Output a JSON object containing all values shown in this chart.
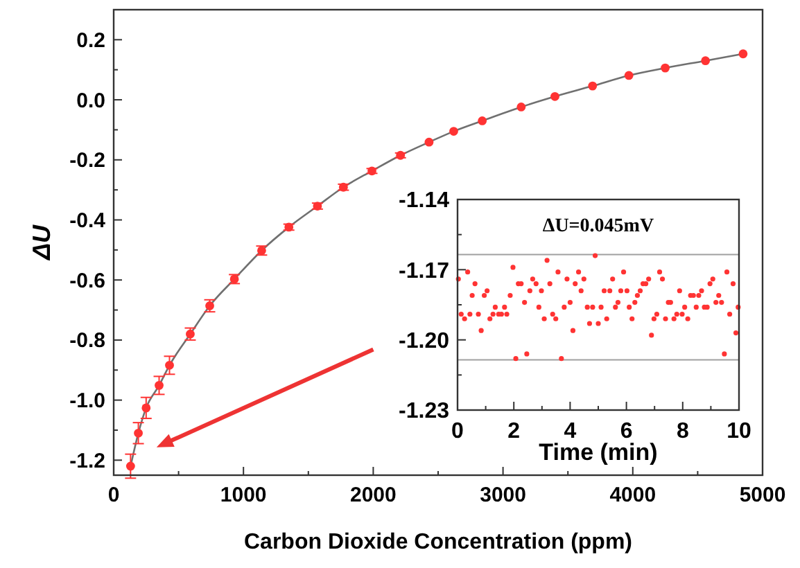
{
  "chart_data": [
    {
      "type": "scatter",
      "xlabel": "Carbon Dioxide Concentration (ppm)",
      "ylabel": "ΔU",
      "xlim": [
        0,
        5000
      ],
      "ylim": [
        -1.25,
        0.3
      ],
      "xticks": [
        0,
        {
          "value": 500,
          "label": null
        },
        1000,
        {
          "value": 1500,
          "label": null
        },
        2000,
        {
          "value": 2500,
          "label": null
        },
        3000,
        {
          "value": 3500,
          "label": null
        },
        4000,
        {
          "value": 4500,
          "label": null
        },
        5000
      ],
      "yticks": [
        {
          "value": -1.2,
          "label": "-1.2"
        },
        {
          "value": -1.1,
          "label": null
        },
        {
          "value": -1.0,
          "label": "-1.0"
        },
        {
          "value": -0.9,
          "label": null
        },
        {
          "value": -0.8,
          "label": "-0.8"
        },
        {
          "value": -0.7,
          "label": null
        },
        {
          "value": -0.6,
          "label": "-0.6"
        },
        {
          "value": -0.5,
          "label": null
        },
        {
          "value": -0.4,
          "label": "-0.4"
        },
        {
          "value": -0.3,
          "label": null
        },
        {
          "value": -0.2,
          "label": "-0.2"
        },
        {
          "value": -0.1,
          "label": null
        },
        {
          "value": 0,
          "label": "0.0"
        },
        {
          "value": 0.1,
          "label": null
        },
        {
          "value": 0.2,
          "label": "0.2"
        }
      ],
      "marker": "circle",
      "series": [
        {
          "type": "line",
          "marker": "none",
          "color": "#707070",
          "x": [
            130,
            190,
            250,
            350,
            430,
            590,
            740,
            930,
            1140,
            1350,
            1570,
            1770,
            1990,
            2210,
            2430,
            2620,
            2840,
            3140,
            3400,
            3690,
            3970,
            4250,
            4560,
            4850
          ],
          "values": [
            -1.22,
            -1.11,
            -1.026,
            -0.951,
            -0.884,
            -0.78,
            -0.686,
            -0.597,
            -0.502,
            -0.424,
            -0.354,
            -0.291,
            -0.237,
            -0.185,
            -0.141,
            -0.105,
            -0.07,
            -0.024,
            0.011,
            0.046,
            0.081,
            0.106,
            0.13,
            0.153
          ]
        },
        {
          "color": "#ff3333",
          "x": [
            130,
            190,
            250,
            350,
            430,
            590,
            740,
            930,
            1140,
            1350,
            1570,
            1770,
            1990,
            2210,
            2430,
            2620,
            2840,
            3140,
            3400,
            3690,
            3970,
            4250,
            4560,
            4850
          ],
          "values": [
            -1.22,
            -1.11,
            -1.026,
            -0.951,
            -0.884,
            -0.78,
            -0.686,
            -0.597,
            -0.502,
            -0.424,
            -0.354,
            -0.291,
            -0.237,
            -0.185,
            -0.141,
            -0.105,
            -0.07,
            -0.024,
            0.011,
            0.046,
            0.081,
            0.106,
            0.13,
            0.153
          ],
          "errors": [
            0.04,
            0.035,
            0.035,
            0.03,
            0.03,
            0.02,
            0.02,
            0.015,
            0.015,
            0.01,
            0.01,
            0.01,
            0.008,
            0.008,
            null,
            null,
            null,
            null,
            null,
            null,
            null,
            null,
            null,
            null
          ]
        }
      ]
    },
    {
      "type": "scatter",
      "xlabel": "Time (min)",
      "xlim": [
        0,
        10
      ],
      "ylim": [
        -1.23,
        -1.14
      ],
      "xticks": [
        0,
        {
          "value": 1,
          "label": null
        },
        2,
        {
          "value": 3,
          "label": null
        },
        4,
        {
          "value": 5,
          "label": null
        },
        6,
        {
          "value": 7,
          "label": null
        },
        8,
        {
          "value": 9,
          "label": null
        },
        10
      ],
      "yticks": [
        {
          "value": -1.23,
          "label": "-1.23"
        },
        {
          "value": -1.215,
          "label": null
        },
        {
          "value": -1.2,
          "label": "-1.20"
        },
        {
          "value": -1.185,
          "label": null
        },
        {
          "value": -1.17,
          "label": "-1.17"
        },
        {
          "value": -1.155,
          "label": null
        },
        {
          "value": -1.14,
          "label": "-1.14"
        }
      ],
      "marker": "circle",
      "ref_lines": [
        {
          "axis": "y",
          "value": -1.1635,
          "color": "#a0a0a0"
        },
        {
          "axis": "y",
          "value": -1.2085,
          "color": "#a0a0a0"
        }
      ],
      "annotations": [
        "ΔU=0.045mV"
      ],
      "series": [
        {
          "color": "#ff3333",
          "x": [
            0.03,
            0.13,
            0.25,
            0.36,
            0.44,
            0.52,
            0.62,
            0.74,
            0.84,
            0.95,
            1.05,
            1.15,
            1.26,
            1.34,
            1.46,
            1.56,
            1.67,
            1.75,
            1.87,
            1.97,
            2.07,
            2.16,
            2.26,
            2.38,
            2.46,
            2.57,
            2.67,
            2.79,
            2.89,
            2.98,
            3.08,
            3.18,
            3.28,
            3.38,
            3.49,
            3.57,
            3.69,
            3.79,
            3.89,
            4.0,
            4.1,
            4.18,
            4.3,
            4.39,
            4.49,
            4.61,
            4.69,
            4.8,
            4.89,
            5.0,
            5.1,
            5.21,
            5.3,
            5.41,
            5.51,
            5.61,
            5.7,
            5.8,
            5.9,
            6.02,
            6.1,
            6.2,
            6.3,
            6.39,
            6.49,
            6.59,
            6.69,
            6.79,
            6.89,
            6.98,
            7.08,
            7.18,
            7.28,
            7.39,
            7.49,
            7.57,
            7.69,
            7.79,
            7.89,
            7.98,
            8.07,
            8.18,
            8.28,
            8.38,
            8.48,
            8.57,
            8.67,
            8.77,
            8.87,
            8.97,
            9.07,
            9.18,
            9.28,
            9.38,
            9.48,
            9.57,
            9.67,
            9.79,
            9.89,
            9.97
          ],
          "values": [
            -1.174,
            -1.189,
            -1.191,
            -1.171,
            -1.189,
            -1.181,
            -1.176,
            -1.189,
            -1.196,
            -1.181,
            -1.179,
            -1.191,
            -1.189,
            -1.186,
            -1.189,
            -1.189,
            -1.186,
            -1.189,
            -1.181,
            -1.169,
            -1.208,
            -1.176,
            -1.176,
            -1.184,
            -1.206,
            -1.179,
            -1.174,
            -1.176,
            -1.186,
            -1.179,
            -1.191,
            -1.166,
            -1.176,
            -1.189,
            -1.191,
            -1.171,
            -1.208,
            -1.186,
            -1.174,
            -1.184,
            -1.196,
            -1.176,
            -1.171,
            -1.179,
            -1.174,
            -1.186,
            -1.193,
            -1.186,
            -1.164,
            -1.193,
            -1.186,
            -1.179,
            -1.191,
            -1.179,
            -1.174,
            -1.186,
            -1.184,
            -1.179,
            -1.171,
            -1.179,
            -1.186,
            -1.191,
            -1.184,
            -1.181,
            -1.179,
            -1.176,
            -1.176,
            -1.174,
            -1.198,
            -1.191,
            -1.189,
            -1.171,
            -1.174,
            -1.191,
            -1.184,
            -1.184,
            -1.191,
            -1.189,
            -1.179,
            -1.189,
            -1.186,
            -1.191,
            -1.181,
            -1.181,
            -1.186,
            -1.181,
            -1.179,
            -1.186,
            -1.186,
            -1.176,
            -1.174,
            -1.184,
            -1.181,
            -1.184,
            -1.206,
            -1.171,
            -1.189,
            -1.176,
            -1.197,
            -1.186
          ]
        }
      ]
    }
  ]
}
